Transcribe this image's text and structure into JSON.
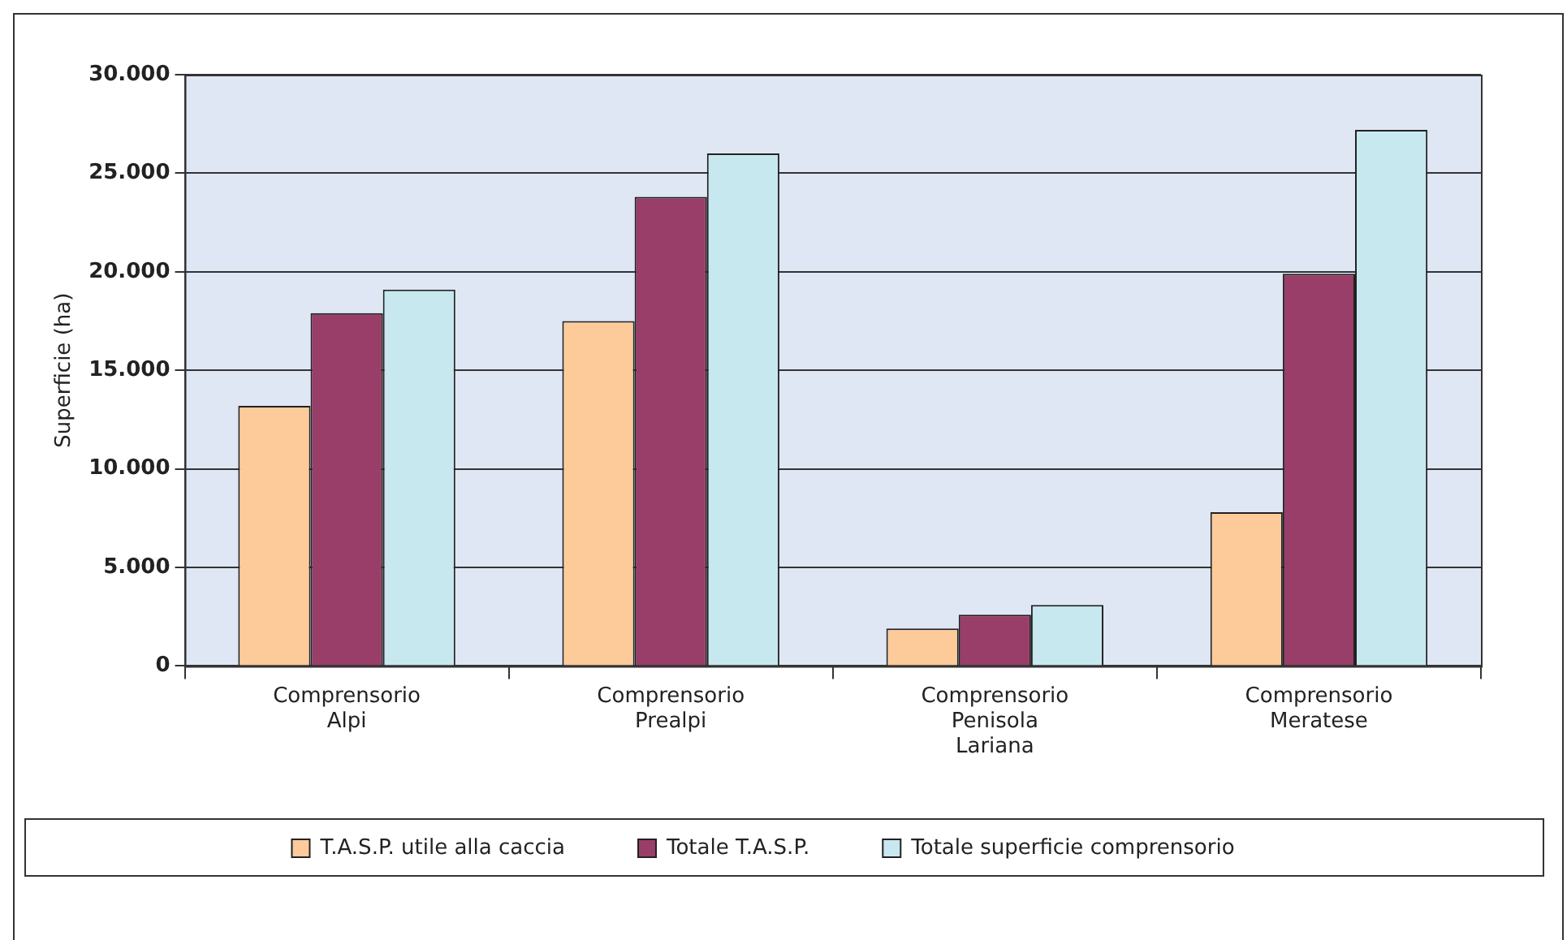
{
  "chart_data": {
    "type": "bar",
    "ylabel": "Superficie (ha)",
    "categories": [
      "Comprensorio Alpi",
      "Comprensorio Prealpi",
      "Comprensorio Penisola Lariana",
      "Comprensorio Meratese"
    ],
    "series": [
      {
        "name": "T.A.S.P. utile alla caccia",
        "color": "#fdca9a",
        "values": [
          13200,
          17500,
          1900,
          7800
        ]
      },
      {
        "name": "Totale T.A.S.P.",
        "color": "#993d69",
        "values": [
          17900,
          23800,
          2600,
          19900
        ]
      },
      {
        "name": "Totale superficie comprensorio",
        "color": "#c8e8f0",
        "values": [
          19100,
          26000,
          3100,
          27200
        ]
      }
    ],
    "ylim": [
      0,
      30000
    ],
    "yticks": [
      {
        "value": 0,
        "label": "0"
      },
      {
        "value": 5000,
        "label": "5.000"
      },
      {
        "value": 10000,
        "label": "10.000"
      },
      {
        "value": 15000,
        "label": "15.000"
      },
      {
        "value": 20000,
        "label": "20.000"
      },
      {
        "value": 25000,
        "label": "25.000"
      },
      {
        "value": 30000,
        "label": "30.000"
      }
    ],
    "grid": "y",
    "legend": "bottom"
  }
}
